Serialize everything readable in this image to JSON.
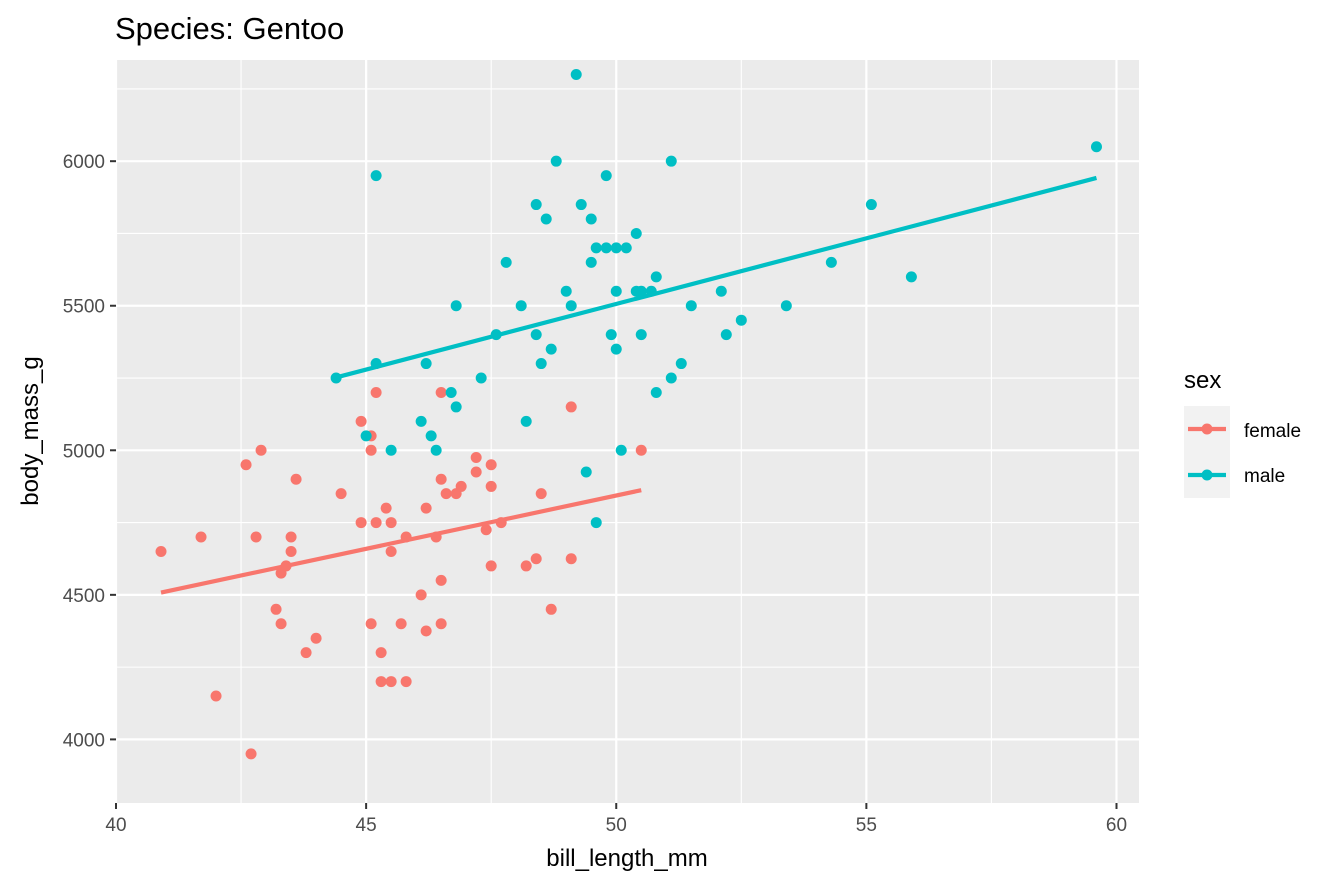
{
  "chart_data": {
    "type": "scatter",
    "title": "Species: Gentoo",
    "xlabel": "bill_length_mm",
    "ylabel": "body_mass_g",
    "xlim": [
      40,
      60.45
    ],
    "ylim": [
      3780,
      6350
    ],
    "x_ticks": [
      40,
      45,
      50,
      55,
      60
    ],
    "y_ticks": [
      4000,
      4500,
      5000,
      5500,
      6000
    ],
    "grid": true,
    "legend": {
      "title": "sex",
      "position": "right"
    },
    "series": [
      {
        "name": "female",
        "color": "#F8766D",
        "points": [
          [
            40.9,
            4650
          ],
          [
            41.7,
            4700
          ],
          [
            42.0,
            4150
          ],
          [
            42.6,
            4950
          ],
          [
            42.7,
            3950
          ],
          [
            42.8,
            4700
          ],
          [
            42.9,
            5000
          ],
          [
            43.2,
            4450
          ],
          [
            43.3,
            4575
          ],
          [
            43.3,
            4400
          ],
          [
            43.4,
            4600
          ],
          [
            43.5,
            4700
          ],
          [
            43.5,
            4650
          ],
          [
            43.6,
            4900
          ],
          [
            43.8,
            4300
          ],
          [
            44.0,
            4350
          ],
          [
            44.5,
            4850
          ],
          [
            44.9,
            5100
          ],
          [
            44.9,
            4750
          ],
          [
            45.1,
            5050
          ],
          [
            45.1,
            5000
          ],
          [
            45.1,
            4400
          ],
          [
            45.2,
            5200
          ],
          [
            45.2,
            4750
          ],
          [
            45.3,
            4300
          ],
          [
            45.3,
            4200
          ],
          [
            45.4,
            4800
          ],
          [
            45.5,
            4750
          ],
          [
            45.5,
            4650
          ],
          [
            45.5,
            4200
          ],
          [
            45.7,
            4400
          ],
          [
            45.8,
            4700
          ],
          [
            45.8,
            4200
          ],
          [
            46.1,
            4500
          ],
          [
            46.2,
            4800
          ],
          [
            46.2,
            4375
          ],
          [
            46.4,
            4700
          ],
          [
            46.5,
            5200
          ],
          [
            46.5,
            4900
          ],
          [
            46.5,
            4550
          ],
          [
            46.5,
            4400
          ],
          [
            46.6,
            4850
          ],
          [
            46.8,
            4850
          ],
          [
            46.9,
            4875
          ],
          [
            47.2,
            4975
          ],
          [
            47.2,
            4925
          ],
          [
            47.4,
            4725
          ],
          [
            47.5,
            4950
          ],
          [
            47.5,
            4875
          ],
          [
            47.5,
            4600
          ],
          [
            47.7,
            4750
          ],
          [
            48.2,
            4600
          ],
          [
            48.4,
            4625
          ],
          [
            48.5,
            4850
          ],
          [
            48.7,
            4450
          ],
          [
            49.1,
            5150
          ],
          [
            49.1,
            4625
          ],
          [
            50.5,
            5000
          ]
        ],
        "trend": {
          "x": [
            40.9,
            50.5
          ],
          "y": [
            4508,
            4862
          ]
        }
      },
      {
        "name": "male",
        "color": "#00BFC4",
        "points": [
          [
            44.4,
            5250
          ],
          [
            45.0,
            5050
          ],
          [
            45.2,
            5950
          ],
          [
            45.2,
            5300
          ],
          [
            45.5,
            5000
          ],
          [
            46.1,
            5100
          ],
          [
            46.2,
            5300
          ],
          [
            46.3,
            5050
          ],
          [
            46.4,
            5000
          ],
          [
            46.7,
            5200
          ],
          [
            46.8,
            5500
          ],
          [
            46.8,
            5150
          ],
          [
            47.3,
            5250
          ],
          [
            47.6,
            5400
          ],
          [
            47.8,
            5650
          ],
          [
            48.1,
            5500
          ],
          [
            48.2,
            5100
          ],
          [
            48.4,
            5850
          ],
          [
            48.4,
            5400
          ],
          [
            48.5,
            5300
          ],
          [
            48.6,
            5800
          ],
          [
            48.7,
            5350
          ],
          [
            48.8,
            6000
          ],
          [
            49.0,
            5550
          ],
          [
            49.1,
            5500
          ],
          [
            49.2,
            6300
          ],
          [
            49.3,
            5850
          ],
          [
            49.4,
            4925
          ],
          [
            49.5,
            5800
          ],
          [
            49.5,
            5650
          ],
          [
            49.6,
            5700
          ],
          [
            49.6,
            4750
          ],
          [
            49.8,
            5950
          ],
          [
            49.8,
            5700
          ],
          [
            49.9,
            5400
          ],
          [
            50.0,
            5700
          ],
          [
            50.0,
            5550
          ],
          [
            50.0,
            5350
          ],
          [
            50.1,
            5000
          ],
          [
            50.2,
            5700
          ],
          [
            50.4,
            5750
          ],
          [
            50.4,
            5550
          ],
          [
            50.5,
            5550
          ],
          [
            50.5,
            5400
          ],
          [
            50.7,
            5550
          ],
          [
            50.8,
            5600
          ],
          [
            50.8,
            5200
          ],
          [
            51.1,
            6000
          ],
          [
            51.1,
            5250
          ],
          [
            51.3,
            5300
          ],
          [
            51.5,
            5500
          ],
          [
            52.1,
            5550
          ],
          [
            52.2,
            5400
          ],
          [
            52.5,
            5450
          ],
          [
            53.4,
            5500
          ],
          [
            54.3,
            5650
          ],
          [
            55.1,
            5850
          ],
          [
            55.9,
            5600
          ],
          [
            59.6,
            6050
          ]
        ],
        "trend": {
          "x": [
            44.4,
            59.6
          ],
          "y": [
            5252,
            5942
          ]
        }
      }
    ]
  }
}
